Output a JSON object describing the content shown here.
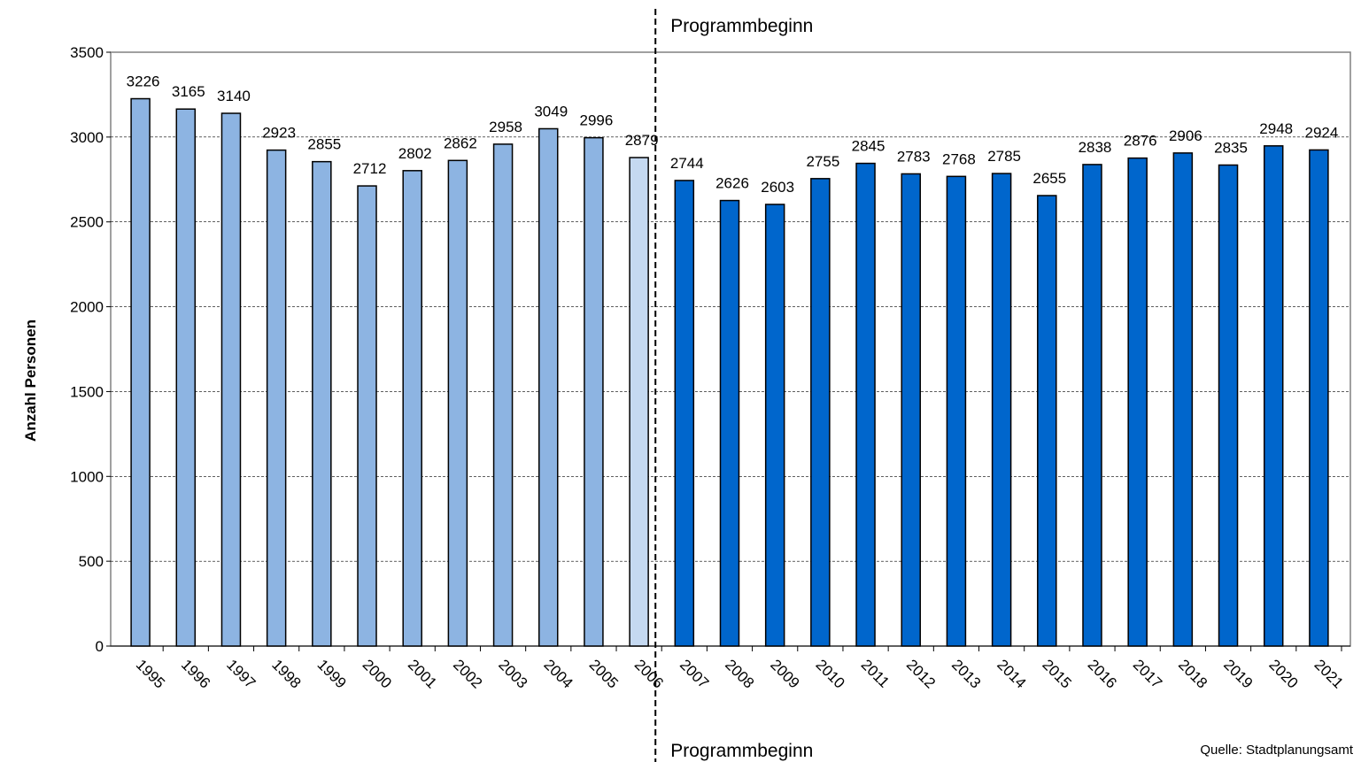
{
  "chart_data": {
    "type": "bar",
    "y_label": "Anzahl Personen",
    "categories": [
      "1995",
      "1996",
      "1997",
      "1998",
      "1999",
      "2000",
      "2001",
      "2002",
      "2003",
      "2004",
      "2005",
      "2006",
      "2007",
      "2008",
      "2009",
      "2010",
      "2011",
      "2012",
      "2013",
      "2014",
      "2015",
      "2016",
      "2017",
      "2018",
      "2019",
      "2020",
      "2021"
    ],
    "values": [
      3226,
      3165,
      3140,
      2923,
      2855,
      2712,
      2802,
      2862,
      2958,
      3049,
      2996,
      2879,
      2744,
      2626,
      2603,
      2755,
      2845,
      2783,
      2768,
      2785,
      2655,
      2838,
      2876,
      2906,
      2835,
      2948,
      2924
    ],
    "colors": [
      "#8db4e2",
      "#8db4e2",
      "#8db4e2",
      "#8db4e2",
      "#8db4e2",
      "#8db4e2",
      "#8db4e2",
      "#8db4e2",
      "#8db4e2",
      "#8db4e2",
      "#8db4e2",
      "#c5d9f1",
      "#0066cc",
      "#0066cc",
      "#0066cc",
      "#0066cc",
      "#0066cc",
      "#0066cc",
      "#0066cc",
      "#0066cc",
      "#0066cc",
      "#0066cc",
      "#0066cc",
      "#0066cc",
      "#0066cc",
      "#0066cc",
      "#0066cc"
    ],
    "ylim": [
      0,
      3500
    ],
    "yticks": [
      0,
      500,
      1000,
      1500,
      2000,
      2500,
      3000,
      3500
    ],
    "grid": true,
    "annotations": [
      "Programmbeginn",
      "Programmbeginn"
    ],
    "source": "Quelle:  Stadtplanungsamt"
  }
}
